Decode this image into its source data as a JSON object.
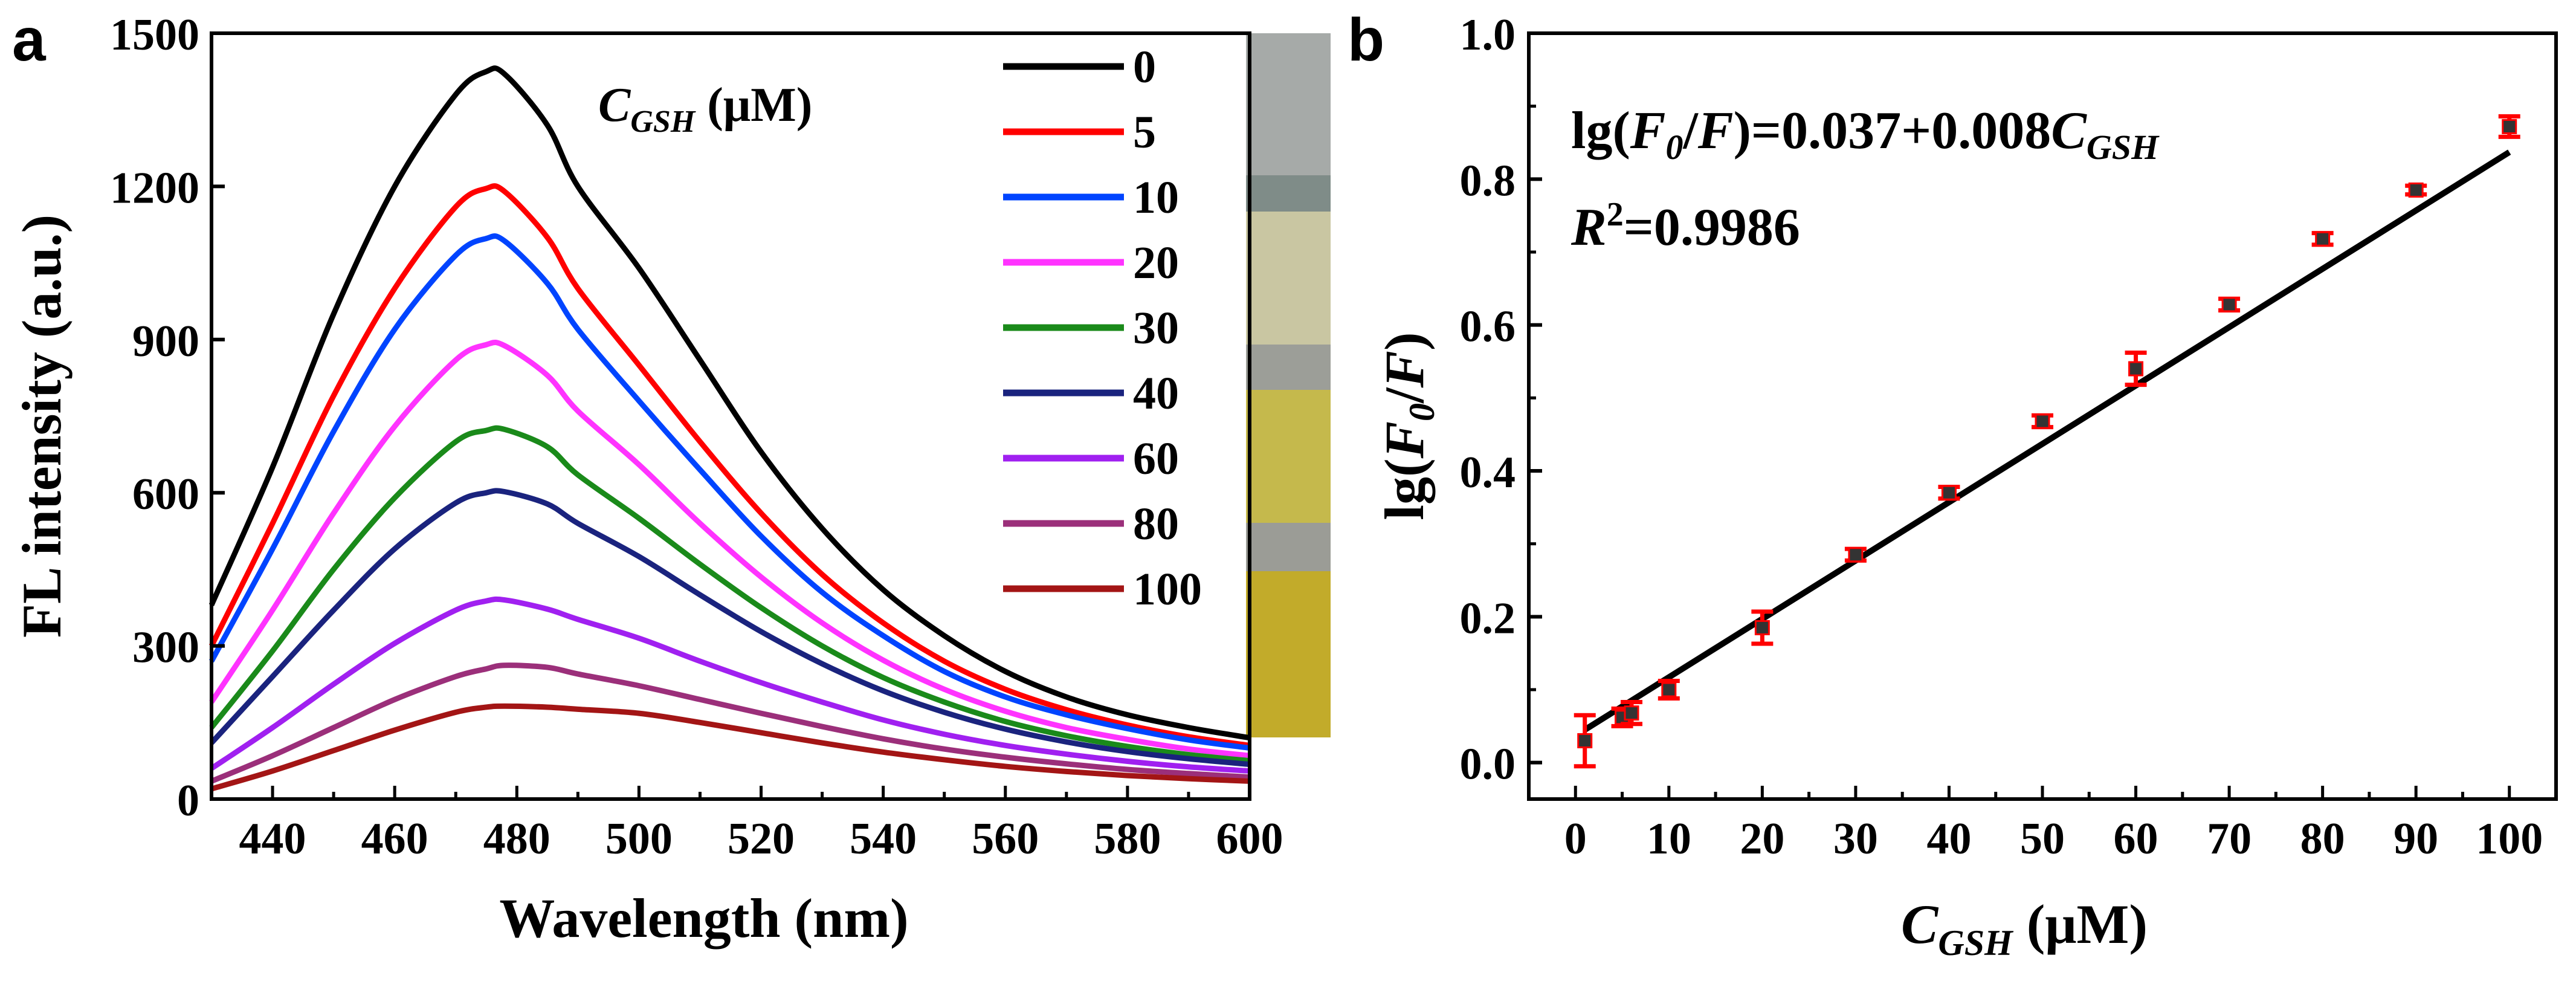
{
  "chart_data": [
    {
      "panel": "a",
      "type": "line",
      "xlabel": "Wavelength (nm)",
      "ylabel": "FL intensity (a.u.)",
      "xlim": [
        430,
        600
      ],
      "ylim": [
        0,
        1500
      ],
      "xticks": [
        440,
        460,
        480,
        500,
        520,
        540,
        560,
        580,
        600
      ],
      "yticks": [
        0,
        300,
        600,
        900,
        1200,
        1500
      ],
      "legend_title": "C_GSH (μM)",
      "legend_placement": "top-right",
      "x": [
        430,
        440,
        450,
        460,
        470,
        475,
        478,
        485,
        490,
        500,
        510,
        520,
        530,
        540,
        550,
        560,
        570,
        580,
        590,
        600
      ],
      "series": [
        {
          "name": "0",
          "color": "#000000",
          "values": [
            380,
            650,
            950,
            1200,
            1380,
            1425,
            1420,
            1320,
            1200,
            1040,
            860,
            680,
            530,
            410,
            320,
            250,
            200,
            165,
            140,
            120
          ]
        },
        {
          "name": "5",
          "color": "#ff0000",
          "values": [
            300,
            540,
            790,
            1000,
            1160,
            1196,
            1190,
            1100,
            1000,
            850,
            700,
            560,
            440,
            345,
            270,
            215,
            175,
            145,
            122,
            105
          ]
        },
        {
          "name": "10",
          "color": "#0044ff",
          "values": [
            270,
            490,
            720,
            920,
            1065,
            1098,
            1093,
            1010,
            920,
            780,
            645,
            515,
            405,
            320,
            250,
            200,
            165,
            138,
            116,
            100
          ]
        },
        {
          "name": "20",
          "color": "#ff33ff",
          "values": [
            190,
            370,
            560,
            730,
            860,
            890,
            888,
            830,
            760,
            655,
            540,
            435,
            345,
            272,
            215,
            172,
            140,
            117,
            98,
            85
          ]
        },
        {
          "name": "30",
          "color": "#1a8a1a",
          "values": [
            140,
            290,
            450,
            590,
            700,
            722,
            724,
            690,
            635,
            550,
            460,
            375,
            300,
            238,
            190,
            152,
            124,
            103,
            87,
            75
          ]
        },
        {
          "name": "40",
          "color": "#1a237e",
          "values": [
            110,
            240,
            370,
            490,
            580,
            600,
            602,
            578,
            540,
            475,
            400,
            328,
            265,
            212,
            170,
            137,
            112,
            93,
            79,
            68
          ]
        },
        {
          "name": "60",
          "color": "#a020f0",
          "values": [
            60,
            140,
            225,
            305,
            370,
            388,
            390,
            372,
            352,
            315,
            270,
            228,
            190,
            155,
            127,
            105,
            88,
            74,
            63,
            55
          ]
        },
        {
          "name": "80",
          "color": "#9b2f7a",
          "values": [
            35,
            85,
            140,
            195,
            240,
            255,
            262,
            258,
            245,
            222,
            195,
            168,
            142,
            118,
            98,
            82,
            69,
            58,
            50,
            43
          ]
        },
        {
          "name": "100",
          "color": "#a31515",
          "values": [
            20,
            55,
            95,
            135,
            170,
            180,
            182,
            180,
            176,
            168,
            150,
            130,
            110,
            92,
            77,
            64,
            54,
            46,
            40,
            35
          ]
        }
      ],
      "inset_strip_colors": [
        "#a6aaa8",
        "#7f8c88",
        "#c9c6a2",
        "#9c9e98",
        "#c5b94c",
        "#9b9c96",
        "#c2ab2a"
      ]
    },
    {
      "panel": "b",
      "type": "scatter",
      "xlabel": "C_GSH (μM)",
      "ylabel": "lg(F_0/F)",
      "xlim": [
        -5,
        105
      ],
      "ylim": [
        -0.05,
        1.0
      ],
      "xticks": [
        0,
        10,
        20,
        30,
        40,
        50,
        60,
        70,
        80,
        90,
        100
      ],
      "yticks": [
        0.0,
        0.2,
        0.4,
        0.6,
        0.8,
        1.0
      ],
      "equation": "lg(F0/F)=0.037+0.008C_GSH",
      "r_squared": "R2=0.9986",
      "fit": {
        "intercept": 0.037,
        "slope": 0.008,
        "color": "#000000"
      },
      "points": {
        "x": [
          1,
          5,
          6,
          10,
          20,
          30,
          40,
          50,
          60,
          70,
          80,
          90,
          100
        ],
        "y": [
          0.03,
          0.062,
          0.068,
          0.1,
          0.185,
          0.285,
          0.37,
          0.468,
          0.54,
          0.628,
          0.718,
          0.785,
          0.872
        ],
        "err": [
          0.035,
          0.012,
          0.015,
          0.012,
          0.022,
          0.008,
          0.008,
          0.008,
          0.022,
          0.008,
          0.008,
          0.006,
          0.014
        ],
        "color": "#ff0000",
        "marker_color": "#333333"
      }
    }
  ],
  "panel_labels": {
    "a": "a",
    "b": "b"
  },
  "panel_a": {
    "ylabel": "FL intensity (a.u.)",
    "xlabel": "Wavelength (nm)",
    "legend_title_c": "C",
    "legend_title_sub": "GSH",
    "legend_title_unit": " (μM)"
  },
  "panel_b": {
    "eq_prefix": "lg(",
    "eq_F": "F",
    "eq_sub0": "0",
    "eq_mid": "/",
    "eq_F2": "F",
    "eq_rhs": ")=0.037+0.008",
    "eq_C": "C",
    "eq_sub_gsh": "GSH",
    "r2_R": "R",
    "r2_sup": "2",
    "r2_value": "=0.9986",
    "xlabel_C": "C",
    "xlabel_sub": "GSH",
    "xlabel_unit": " (μM)",
    "ylabel_prefix": "lg(",
    "ylabel_F": "F",
    "ylabel_sub": "0",
    "ylabel_mid": "/",
    "ylabel_F2": "F",
    "ylabel_suffix": ")"
  }
}
